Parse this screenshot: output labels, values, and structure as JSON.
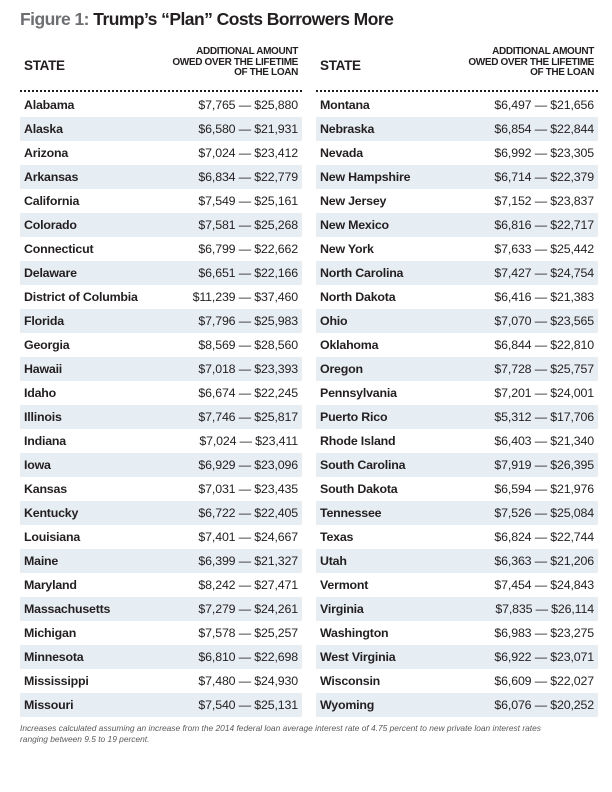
{
  "title": {
    "label": "Figure 1:",
    "text": " Trump’s “Plan” Costs Borrowers More"
  },
  "headers": {
    "state": "STATE",
    "amount_line1": "ADDITIONAL AMOUNT",
    "amount_line2": "OWED OVER THE LIFETIME",
    "amount_line3": "OF THE LOAN"
  },
  "left_rows": [
    {
      "state": "Alabama",
      "amount": "$7,765 — $25,880"
    },
    {
      "state": "Alaska",
      "amount": "$6,580 — $21,931"
    },
    {
      "state": "Arizona",
      "amount": "$7,024 — $23,412"
    },
    {
      "state": "Arkansas",
      "amount": "$6,834 — $22,779"
    },
    {
      "state": "California",
      "amount": "$7,549 — $25,161"
    },
    {
      "state": "Colorado",
      "amount": "$7,581 — $25,268"
    },
    {
      "state": "Connecticut",
      "amount": "$6,799 — $22,662"
    },
    {
      "state": "Delaware",
      "amount": "$6,651 — $22,166"
    },
    {
      "state": "District of Columbia",
      "amount": "$11,239 — $37,460"
    },
    {
      "state": "Florida",
      "amount": "$7,796 — $25,983"
    },
    {
      "state": "Georgia",
      "amount": "$8,569 — $28,560"
    },
    {
      "state": "Hawaii",
      "amount": "$7,018 — $23,393"
    },
    {
      "state": "Idaho",
      "amount": "$6,674 — $22,245"
    },
    {
      "state": "Illinois",
      "amount": "$7,746 — $25,817"
    },
    {
      "state": "Indiana",
      "amount": "$7,024 — $23,411"
    },
    {
      "state": "Iowa",
      "amount": "$6,929 — $23,096"
    },
    {
      "state": "Kansas",
      "amount": "$7,031 — $23,435"
    },
    {
      "state": "Kentucky",
      "amount": "$6,722 — $22,405"
    },
    {
      "state": "Louisiana",
      "amount": "$7,401 — $24,667"
    },
    {
      "state": "Maine",
      "amount": "$6,399 — $21,327"
    },
    {
      "state": "Maryland",
      "amount": "$8,242 — $27,471"
    },
    {
      "state": "Massachusetts",
      "amount": "$7,279 — $24,261"
    },
    {
      "state": "Michigan",
      "amount": "$7,578 — $25,257"
    },
    {
      "state": "Minnesota",
      "amount": "$6,810 — $22,698"
    },
    {
      "state": "Mississippi",
      "amount": "$7,480 — $24,930"
    },
    {
      "state": "Missouri",
      "amount": "$7,540 — $25,131"
    }
  ],
  "right_rows": [
    {
      "state": "Montana",
      "amount": "$6,497 — $21,656"
    },
    {
      "state": "Nebraska",
      "amount": "$6,854 — $22,844"
    },
    {
      "state": "Nevada",
      "amount": "$6,992 — $23,305"
    },
    {
      "state": "New Hampshire",
      "amount": "$6,714 — $22,379"
    },
    {
      "state": "New Jersey",
      "amount": "$7,152 — $23,837"
    },
    {
      "state": "New Mexico",
      "amount": "$6,816 — $22,717"
    },
    {
      "state": "New York",
      "amount": "$7,633 — $25,442"
    },
    {
      "state": "North Carolina",
      "amount": "$7,427 — $24,754"
    },
    {
      "state": "North Dakota",
      "amount": "$6,416 — $21,383"
    },
    {
      "state": "Ohio",
      "amount": "$7,070 — $23,565"
    },
    {
      "state": "Oklahoma",
      "amount": "$6,844 — $22,810"
    },
    {
      "state": "Oregon",
      "amount": "$7,728 — $25,757"
    },
    {
      "state": "Pennsylvania",
      "amount": "$7,201 — $24,001"
    },
    {
      "state": "Puerto Rico",
      "amount": "$5,312 — $17,706"
    },
    {
      "state": "Rhode Island",
      "amount": "$6,403 — $21,340"
    },
    {
      "state": "South Carolina",
      "amount": "$7,919 — $26,395"
    },
    {
      "state": "South Dakota",
      "amount": "$6,594 — $21,976"
    },
    {
      "state": "Tennessee",
      "amount": "$7,526 — $25,084"
    },
    {
      "state": "Texas",
      "amount": "$6,824 — $22,744"
    },
    {
      "state": "Utah",
      "amount": "$6,363 — $21,206"
    },
    {
      "state": "Vermont",
      "amount": "$7,454 — $24,843"
    },
    {
      "state": "Virginia",
      "amount": "$7,835 — $26,114"
    },
    {
      "state": "Washington",
      "amount": "$6,983 — $23,275"
    },
    {
      "state": "West Virginia",
      "amount": "$6,922 — $23,071"
    },
    {
      "state": "Wisconsin",
      "amount": "$6,609 — $22,027"
    },
    {
      "state": "Wyoming",
      "amount": "$6,076 — $20,252"
    }
  ],
  "footnote": {
    "line1": "Increases calculated assuming an increase from the 2014 federal loan average interest rate of 4.75 percent to new private loan interest rates",
    "line2": "ranging between 9.5 to 19 percent."
  },
  "colors": {
    "text": "#231f20",
    "figure_label": "#6d6e71",
    "row_stripe": "#e6edf3",
    "footnote": "#58595b"
  }
}
